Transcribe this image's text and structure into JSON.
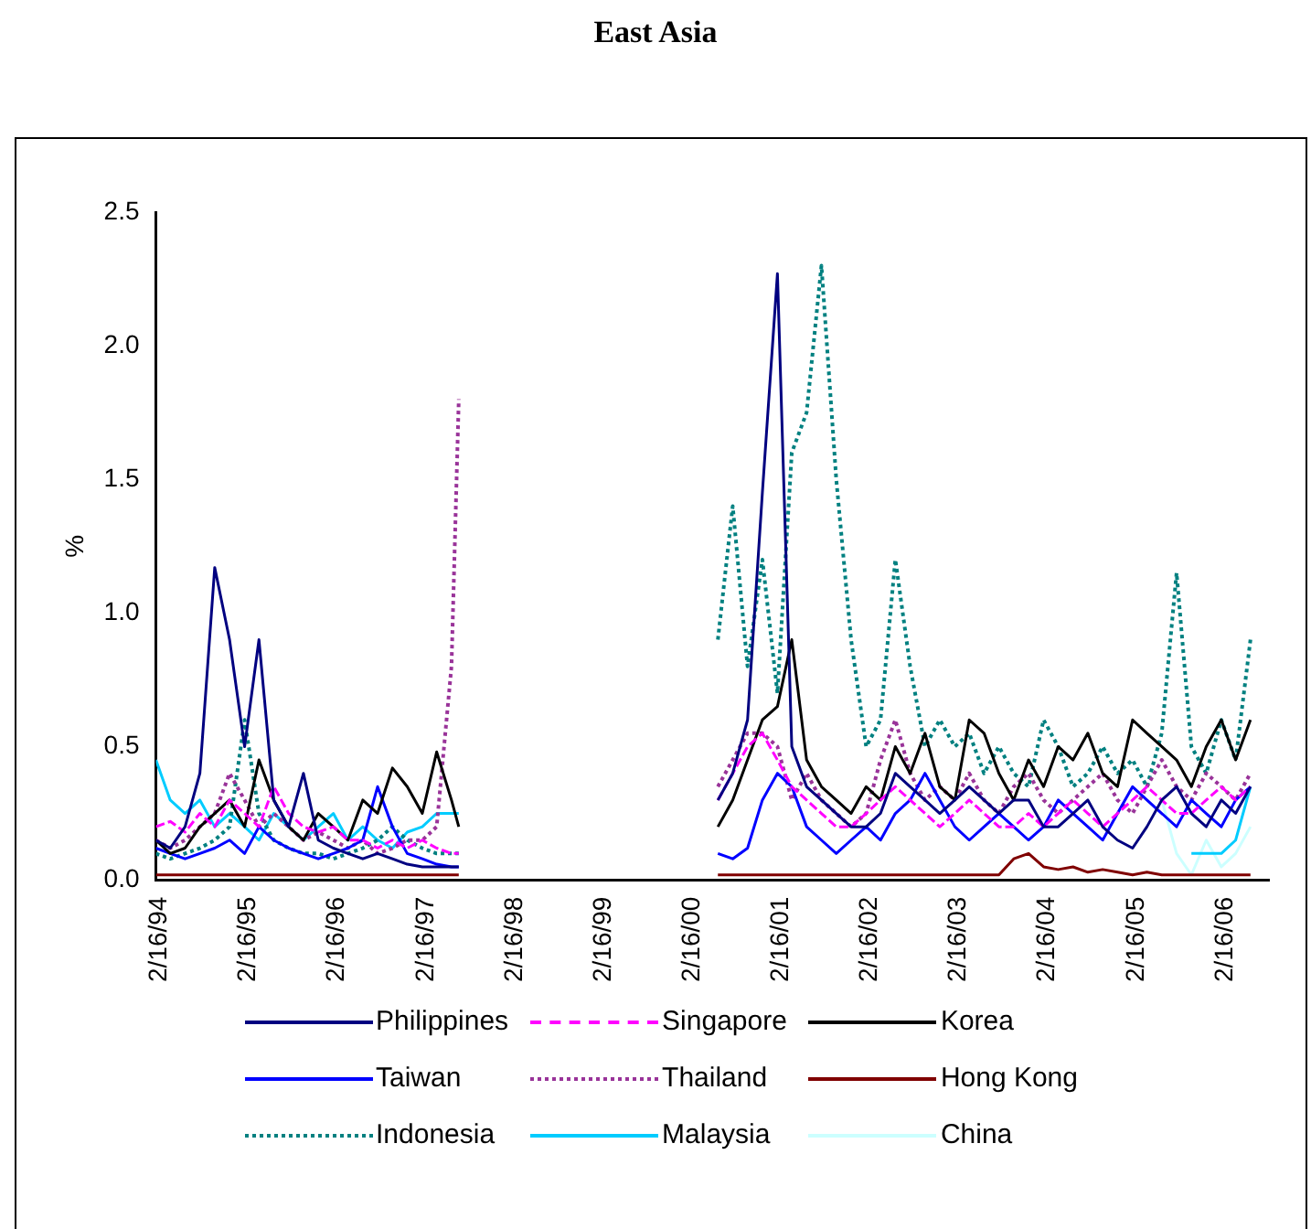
{
  "chart_data": {
    "type": "line",
    "title": "East Asia",
    "ylabel": "%",
    "x": [
      "1994-02",
      "1994-04",
      "1994-06",
      "1994-08",
      "1994-10",
      "1994-12",
      "1995-02",
      "1995-04",
      "1995-06",
      "1995-08",
      "1995-10",
      "1995-12",
      "1996-02",
      "1996-04",
      "1996-06",
      "1996-08",
      "1996-10",
      "1996-12",
      "1997-02",
      "1997-04",
      "1997-06",
      "1997-07",
      "1998-12",
      "2000-06",
      "2000-08",
      "2000-10",
      "2000-12",
      "2001-02",
      "2001-04",
      "2001-06",
      "2001-08",
      "2001-10",
      "2001-12",
      "2002-02",
      "2002-04",
      "2002-06",
      "2002-08",
      "2002-10",
      "2002-12",
      "2003-02",
      "2003-04",
      "2003-06",
      "2003-08",
      "2003-10",
      "2003-12",
      "2004-02",
      "2004-04",
      "2004-06",
      "2004-08",
      "2004-10",
      "2004-12",
      "2005-02",
      "2005-04",
      "2005-06",
      "2005-08",
      "2005-10",
      "2005-12",
      "2006-02",
      "2006-04",
      "2006-06"
    ],
    "series": [
      {
        "name": "Philippines",
        "color": "#000080",
        "line_style": "solid",
        "values": [
          0.15,
          0.12,
          0.2,
          0.4,
          1.17,
          0.9,
          0.5,
          0.9,
          0.3,
          0.2,
          0.4,
          0.15,
          0.12,
          0.1,
          0.08,
          0.1,
          0.08,
          0.06,
          0.05,
          0.05,
          0.05,
          0.05,
          null,
          0.3,
          0.4,
          0.6,
          1.45,
          2.27,
          0.5,
          0.35,
          0.3,
          0.25,
          0.2,
          0.2,
          0.25,
          0.4,
          0.35,
          0.3,
          0.25,
          0.3,
          0.35,
          0.3,
          0.25,
          0.3,
          0.3,
          0.2,
          0.2,
          0.25,
          0.3,
          0.2,
          0.15,
          0.12,
          0.2,
          0.3,
          0.35,
          0.25,
          0.2,
          0.3,
          0.25,
          0.35
        ]
      },
      {
        "name": "Singapore",
        "color": "#ff00ff",
        "line_style": "dashed",
        "values": [
          0.2,
          0.22,
          0.18,
          0.25,
          0.2,
          0.3,
          0.25,
          0.2,
          0.35,
          0.25,
          0.2,
          0.18,
          0.2,
          0.15,
          0.15,
          0.12,
          0.15,
          0.12,
          0.15,
          0.12,
          0.1,
          0.1,
          null,
          0.3,
          0.4,
          0.5,
          0.55,
          0.45,
          0.35,
          0.3,
          0.25,
          0.2,
          0.2,
          0.25,
          0.3,
          0.35,
          0.3,
          0.25,
          0.2,
          0.25,
          0.3,
          0.25,
          0.2,
          0.2,
          0.25,
          0.2,
          0.25,
          0.3,
          0.25,
          0.2,
          0.25,
          0.3,
          0.35,
          0.3,
          0.25,
          0.25,
          0.3,
          0.35,
          0.3,
          0.35
        ]
      },
      {
        "name": "Korea",
        "color": "#000000",
        "line_style": "solid",
        "values": [
          0.15,
          0.1,
          0.12,
          0.2,
          0.25,
          0.3,
          0.2,
          0.45,
          0.3,
          0.2,
          0.15,
          0.25,
          0.2,
          0.15,
          0.3,
          0.25,
          0.42,
          0.35,
          0.25,
          0.48,
          0.3,
          0.2,
          null,
          0.2,
          0.3,
          0.45,
          0.6,
          0.65,
          0.9,
          0.45,
          0.35,
          0.3,
          0.25,
          0.35,
          0.3,
          0.5,
          0.4,
          0.55,
          0.35,
          0.3,
          0.6,
          0.55,
          0.4,
          0.3,
          0.45,
          0.35,
          0.5,
          0.45,
          0.55,
          0.4,
          0.35,
          0.6,
          0.55,
          0.5,
          0.45,
          0.35,
          0.5,
          0.6,
          0.45,
          0.6
        ]
      },
      {
        "name": "Taiwan",
        "color": "#0000ff",
        "line_style": "solid",
        "values": [
          0.12,
          0.1,
          0.08,
          0.1,
          0.12,
          0.15,
          0.1,
          0.2,
          0.15,
          0.12,
          0.1,
          0.08,
          0.1,
          0.12,
          0.15,
          0.35,
          0.2,
          0.1,
          0.08,
          0.06,
          0.05,
          0.05,
          null,
          0.1,
          0.08,
          0.12,
          0.3,
          0.4,
          0.35,
          0.2,
          0.15,
          0.1,
          0.15,
          0.2,
          0.15,
          0.25,
          0.3,
          0.4,
          0.3,
          0.2,
          0.15,
          0.2,
          0.25,
          0.2,
          0.15,
          0.2,
          0.3,
          0.25,
          0.2,
          0.15,
          0.25,
          0.35,
          0.3,
          0.25,
          0.2,
          0.3,
          0.25,
          0.2,
          0.3,
          0.35
        ]
      },
      {
        "name": "Thailand",
        "color": "#993399",
        "line_style": "dotted",
        "values": [
          0.15,
          0.12,
          0.15,
          0.2,
          0.25,
          0.4,
          0.3,
          0.2,
          0.25,
          0.2,
          0.15,
          0.18,
          0.15,
          0.12,
          0.15,
          0.1,
          0.12,
          0.15,
          0.15,
          0.2,
          0.8,
          1.8,
          null,
          0.35,
          0.45,
          0.55,
          0.55,
          0.5,
          0.3,
          0.4,
          0.3,
          0.25,
          0.2,
          0.25,
          0.45,
          0.6,
          0.4,
          0.3,
          0.35,
          0.3,
          0.4,
          0.3,
          0.25,
          0.35,
          0.4,
          0.3,
          0.25,
          0.3,
          0.35,
          0.4,
          0.3,
          0.25,
          0.35,
          0.45,
          0.35,
          0.3,
          0.4,
          0.35,
          0.3,
          0.4
        ]
      },
      {
        "name": "Hong Kong",
        "color": "#800000",
        "line_style": "solid",
        "values": [
          0.02,
          0.02,
          0.02,
          0.02,
          0.02,
          0.02,
          0.02,
          0.02,
          0.02,
          0.02,
          0.02,
          0.02,
          0.02,
          0.02,
          0.02,
          0.02,
          0.02,
          0.02,
          0.02,
          0.02,
          0.02,
          0.02,
          null,
          0.02,
          0.02,
          0.02,
          0.02,
          0.02,
          0.02,
          0.02,
          0.02,
          0.02,
          0.02,
          0.02,
          0.02,
          0.02,
          0.02,
          0.02,
          0.02,
          0.02,
          0.02,
          0.02,
          0.02,
          0.08,
          0.1,
          0.05,
          0.04,
          0.05,
          0.03,
          0.04,
          0.03,
          0.02,
          0.03,
          0.02,
          0.02,
          0.02,
          0.02,
          0.02,
          0.02,
          0.02
        ]
      },
      {
        "name": "Indonesia",
        "color": "#008080",
        "line_style": "dotted",
        "values": [
          0.1,
          0.08,
          0.1,
          0.12,
          0.15,
          0.2,
          0.6,
          0.25,
          0.15,
          0.12,
          0.1,
          0.1,
          0.08,
          0.1,
          0.12,
          0.15,
          0.2,
          0.15,
          0.12,
          0.1,
          0.1,
          0.1,
          null,
          0.9,
          1.4,
          0.8,
          1.2,
          0.7,
          1.6,
          1.75,
          2.3,
          1.5,
          0.9,
          0.5,
          0.6,
          1.2,
          0.8,
          0.5,
          0.6,
          0.5,
          0.55,
          0.4,
          0.5,
          0.4,
          0.35,
          0.6,
          0.5,
          0.35,
          0.4,
          0.5,
          0.4,
          0.45,
          0.35,
          0.55,
          1.15,
          0.5,
          0.4,
          0.6,
          0.45,
          0.9
        ]
      },
      {
        "name": "Malaysia",
        "color": "#00ccff",
        "line_style": "solid",
        "values": [
          0.45,
          0.3,
          0.25,
          0.3,
          0.2,
          0.25,
          0.2,
          0.15,
          0.25,
          0.2,
          0.15,
          0.2,
          0.25,
          0.15,
          0.2,
          0.15,
          0.12,
          0.18,
          0.2,
          0.25,
          0.25,
          0.25,
          null,
          null,
          null,
          null,
          null,
          null,
          null,
          null,
          null,
          null,
          null,
          null,
          null,
          null,
          null,
          null,
          null,
          null,
          null,
          null,
          null,
          null,
          null,
          null,
          null,
          null,
          null,
          null,
          null,
          null,
          null,
          null,
          null,
          0.1,
          0.1,
          0.1,
          0.15,
          0.35
        ]
      },
      {
        "name": "China",
        "color": "#ccffff",
        "line_style": "solid",
        "values": [
          null,
          null,
          null,
          null,
          null,
          null,
          null,
          null,
          null,
          null,
          null,
          null,
          null,
          null,
          null,
          null,
          null,
          null,
          null,
          null,
          null,
          null,
          null,
          null,
          null,
          null,
          null,
          null,
          null,
          null,
          null,
          null,
          null,
          null,
          null,
          null,
          null,
          null,
          null,
          null,
          null,
          null,
          null,
          null,
          null,
          null,
          null,
          null,
          null,
          null,
          null,
          null,
          null,
          0.3,
          0.1,
          0.02,
          0.15,
          0.05,
          0.1,
          0.2
        ]
      }
    ],
    "xlim": [
      "1994-02-01",
      "2006-08-16"
    ],
    "xticks": [
      {
        "value": "1994-02-16",
        "label": "2/16/94"
      },
      {
        "value": "1995-02-16",
        "label": "2/16/95"
      },
      {
        "value": "1996-02-16",
        "label": "2/16/96"
      },
      {
        "value": "1997-02-16",
        "label": "2/16/97"
      },
      {
        "value": "1998-02-16",
        "label": "2/16/98"
      },
      {
        "value": "1999-02-16",
        "label": "2/16/99"
      },
      {
        "value": "2000-02-16",
        "label": "2/16/00"
      },
      {
        "value": "2001-02-16",
        "label": "2/16/01"
      },
      {
        "value": "2002-02-16",
        "label": "2/16/02"
      },
      {
        "value": "2003-02-16",
        "label": "2/16/03"
      },
      {
        "value": "2004-02-16",
        "label": "2/16/04"
      },
      {
        "value": "2005-02-16",
        "label": "2/16/05"
      },
      {
        "value": "2006-02-16",
        "label": "2/16/06"
      }
    ],
    "ylim": [
      0,
      2.5
    ],
    "yticks": [
      {
        "value": 0,
        "label": "0.0"
      },
      {
        "value": 0.5,
        "label": "0.5"
      },
      {
        "value": 1,
        "label": "1.0"
      },
      {
        "value": 1.5,
        "label": "1.5"
      },
      {
        "value": 2,
        "label": "2.0"
      },
      {
        "value": 2.5,
        "label": "2.5"
      }
    ],
    "grid": false,
    "legend": "bottom",
    "marker": "none"
  }
}
